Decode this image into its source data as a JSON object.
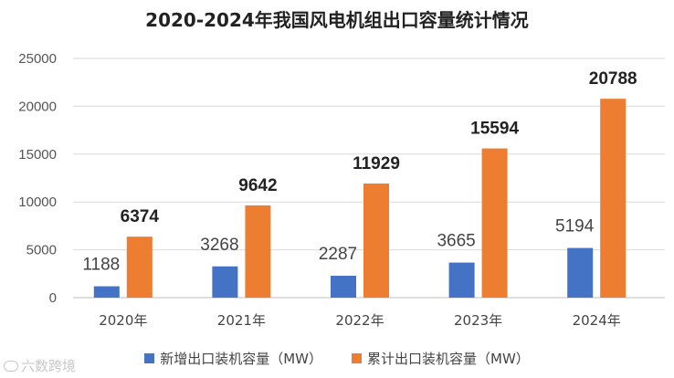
{
  "chart_data": {
    "type": "bar",
    "title": "2020-2024年我国风电机组出口容量统计情况",
    "categories": [
      "2020年",
      "2021年",
      "2022年",
      "2023年",
      "2024年"
    ],
    "series": [
      {
        "name": "新增出口装机容量（MW）",
        "values": [
          1188,
          3268,
          2287,
          3665,
          5194
        ],
        "color": "#4472C4"
      },
      {
        "name": "累计出口装机容量（MW）",
        "values": [
          6374,
          9642,
          11929,
          15594,
          20788
        ],
        "color": "#ED7D31"
      }
    ],
    "ylim": [
      0,
      25000
    ],
    "yticks": [
      0,
      5000,
      10000,
      15000,
      20000,
      25000
    ],
    "grid": true,
    "legend_position": "bottom"
  },
  "watermark": {
    "text": "六数跨境"
  }
}
